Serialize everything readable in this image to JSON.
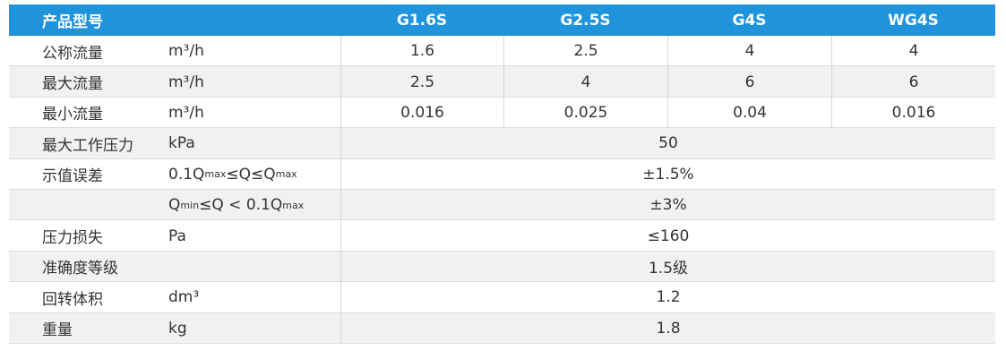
{
  "table": {
    "header": [
      "产品型号",
      "G1.6S",
      "G2.5S",
      "G4S",
      "WG4S"
    ],
    "rows": [
      {
        "label": "公称流量",
        "unit": [
          {
            "text": "m³/h"
          }
        ],
        "values": [
          "1.6",
          "2.5",
          "4",
          "4"
        ]
      },
      {
        "label": "最大流量",
        "unit": [
          {
            "text": "m³/h"
          }
        ],
        "values": [
          "2.5",
          "4",
          "6",
          "6"
        ]
      },
      {
        "label": "最小流量",
        "unit": [
          {
            "text": "m³/h"
          }
        ],
        "values": [
          "0.016",
          "0.025",
          "0.04",
          "0.016"
        ]
      },
      {
        "label": "最大工作压力",
        "unit": [
          {
            "text": "kPa"
          }
        ],
        "values": [
          "50"
        ]
      },
      {
        "label": "示值误差",
        "unit": [
          {
            "text": "0.1Q"
          },
          {
            "text": "max",
            "sub": true
          },
          {
            "text": "≤Q≤Q"
          },
          {
            "text": "max",
            "sub": true
          }
        ],
        "values": [
          "±1.5%"
        ]
      },
      {
        "unit": [
          {
            "text": "Q"
          },
          {
            "text": "min",
            "sub": true
          },
          {
            "text": "≤Q < 0.1Q"
          },
          {
            "text": "max",
            "sub": true
          }
        ],
        "values": [
          "±3%"
        ]
      },
      {
        "label": "压力损失",
        "unit": [
          {
            "text": "Pa"
          }
        ],
        "values": [
          "≤160"
        ]
      },
      {
        "label": "准确度等级",
        "values": [
          "1.5级"
        ]
      },
      {
        "label": "回转体积",
        "unit": [
          {
            "text": "dm³"
          }
        ],
        "values": [
          "1.2"
        ]
      },
      {
        "label": "重量",
        "unit": [
          {
            "text": "kg"
          }
        ],
        "values": [
          "1.8"
        ]
      }
    ]
  }
}
